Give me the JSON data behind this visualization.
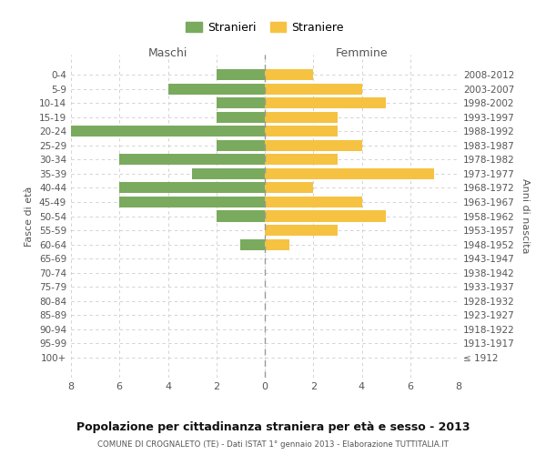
{
  "age_groups": [
    "0-4",
    "5-9",
    "10-14",
    "15-19",
    "20-24",
    "25-29",
    "30-34",
    "35-39",
    "40-44",
    "45-49",
    "50-54",
    "55-59",
    "60-64",
    "65-69",
    "70-74",
    "75-79",
    "80-84",
    "85-89",
    "90-94",
    "95-99",
    "100+"
  ],
  "birth_years": [
    "2008-2012",
    "2003-2007",
    "1998-2002",
    "1993-1997",
    "1988-1992",
    "1983-1987",
    "1978-1982",
    "1973-1977",
    "1968-1972",
    "1963-1967",
    "1958-1962",
    "1953-1957",
    "1948-1952",
    "1943-1947",
    "1938-1942",
    "1933-1937",
    "1928-1932",
    "1923-1927",
    "1918-1922",
    "1913-1917",
    "≤ 1912"
  ],
  "stranieri": [
    2,
    4,
    2,
    2,
    8,
    2,
    6,
    3,
    6,
    6,
    2,
    0,
    1,
    0,
    0,
    0,
    0,
    0,
    0,
    0,
    0
  ],
  "straniere": [
    2,
    4,
    5,
    3,
    3,
    4,
    3,
    7,
    2,
    4,
    5,
    3,
    1,
    0,
    0,
    0,
    0,
    0,
    0,
    0,
    0
  ],
  "color_stranieri": "#7aaa5e",
  "color_straniere": "#f5c242",
  "xlim": 8,
  "title": "Popolazione per cittadinanza straniera per età e sesso - 2013",
  "subtitle": "COMUNE DI CROGNALETO (TE) - Dati ISTAT 1° gennaio 2013 - Elaborazione TUTTITALIA.IT",
  "ylabel_left": "Fasce di età",
  "ylabel_right": "Anni di nascita",
  "label_maschi": "Maschi",
  "label_femmine": "Femmine",
  "legend_stranieri": "Stranieri",
  "legend_straniere": "Straniere",
  "background_color": "#ffffff",
  "grid_color": "#cccccc"
}
